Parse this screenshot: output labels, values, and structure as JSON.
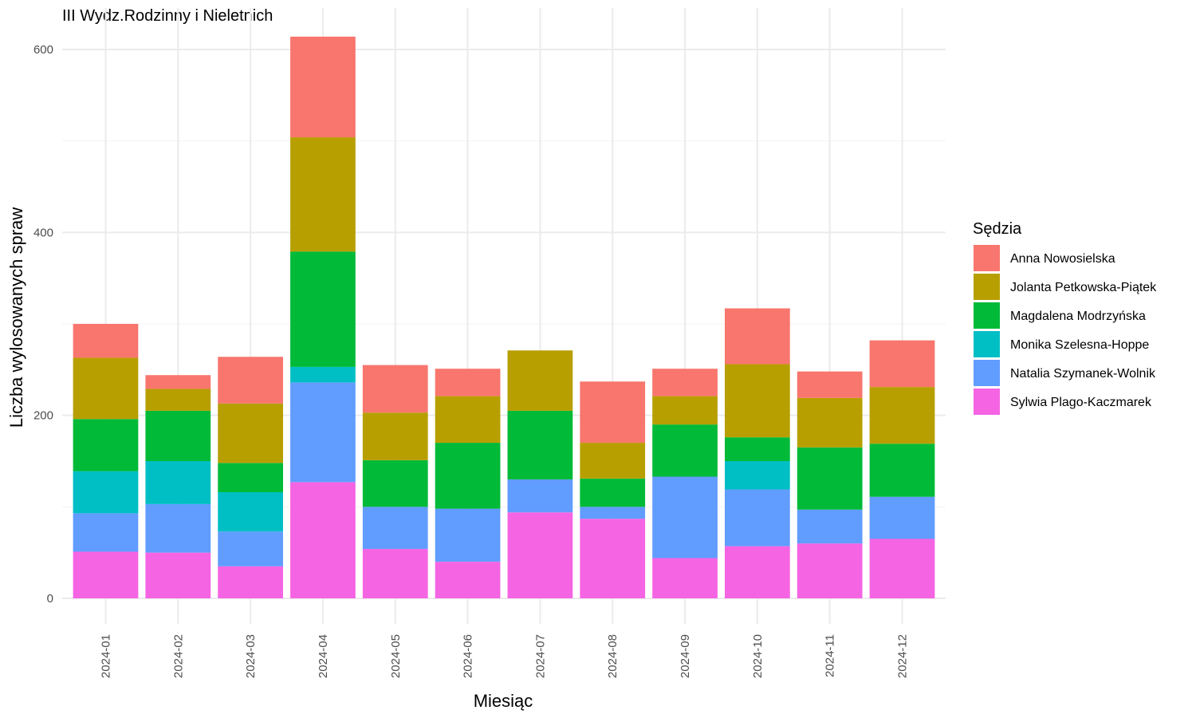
{
  "chart_data": {
    "type": "bar",
    "stacked": true,
    "title": "III Wydz.Rodzinny i Nieletnich",
    "xlabel": "Miesiąc",
    "ylabel": "Liczba wylosowanych spraw",
    "ylim": [
      0,
      620
    ],
    "yticks": [
      0,
      200,
      400,
      600
    ],
    "grid": true,
    "legend_title": "Sędzia",
    "legend_position": "right",
    "categories": [
      "2024-01",
      "2024-02",
      "2024-03",
      "2024-04",
      "2024-05",
      "2024-06",
      "2024-07",
      "2024-08",
      "2024-09",
      "2024-10",
      "2024-11",
      "2024-12"
    ],
    "series": [
      {
        "name": "Sylwia Plago-Kaczmarek",
        "color": "#F564E3",
        "values": [
          51,
          50,
          35,
          127,
          54,
          40,
          94,
          87,
          44,
          57,
          60,
          65
        ]
      },
      {
        "name": "Natalia Szymanek-Wolnik",
        "color": "#619CFF",
        "values": [
          42,
          53,
          38,
          109,
          46,
          58,
          36,
          13,
          89,
          62,
          37,
          46
        ]
      },
      {
        "name": "Monika Szelesna-Hoppe",
        "color": "#00BFC4",
        "values": [
          46,
          47,
          43,
          17,
          0,
          0,
          0,
          0,
          0,
          31,
          0,
          0
        ]
      },
      {
        "name": "Magdalena Modrzyńska",
        "color": "#00BA38",
        "values": [
          57,
          55,
          32,
          126,
          51,
          72,
          75,
          31,
          57,
          26,
          68,
          58
        ]
      },
      {
        "name": "Jolanta Petkowska-Piątek",
        "color": "#B79F00",
        "values": [
          67,
          24,
          65,
          125,
          52,
          51,
          66,
          39,
          31,
          80,
          54,
          62
        ]
      },
      {
        "name": "Anna Nowosielska",
        "color": "#F8766D",
        "values": [
          37,
          15,
          51,
          110,
          52,
          30,
          0,
          67,
          30,
          61,
          29,
          51
        ]
      }
    ],
    "legend_order": [
      "Anna Nowosielska",
      "Jolanta Petkowska-Piątek",
      "Magdalena Modrzyńska",
      "Monika Szelesna-Hoppe",
      "Natalia Szymanek-Wolnik",
      "Sylwia Plago-Kaczmarek"
    ]
  }
}
